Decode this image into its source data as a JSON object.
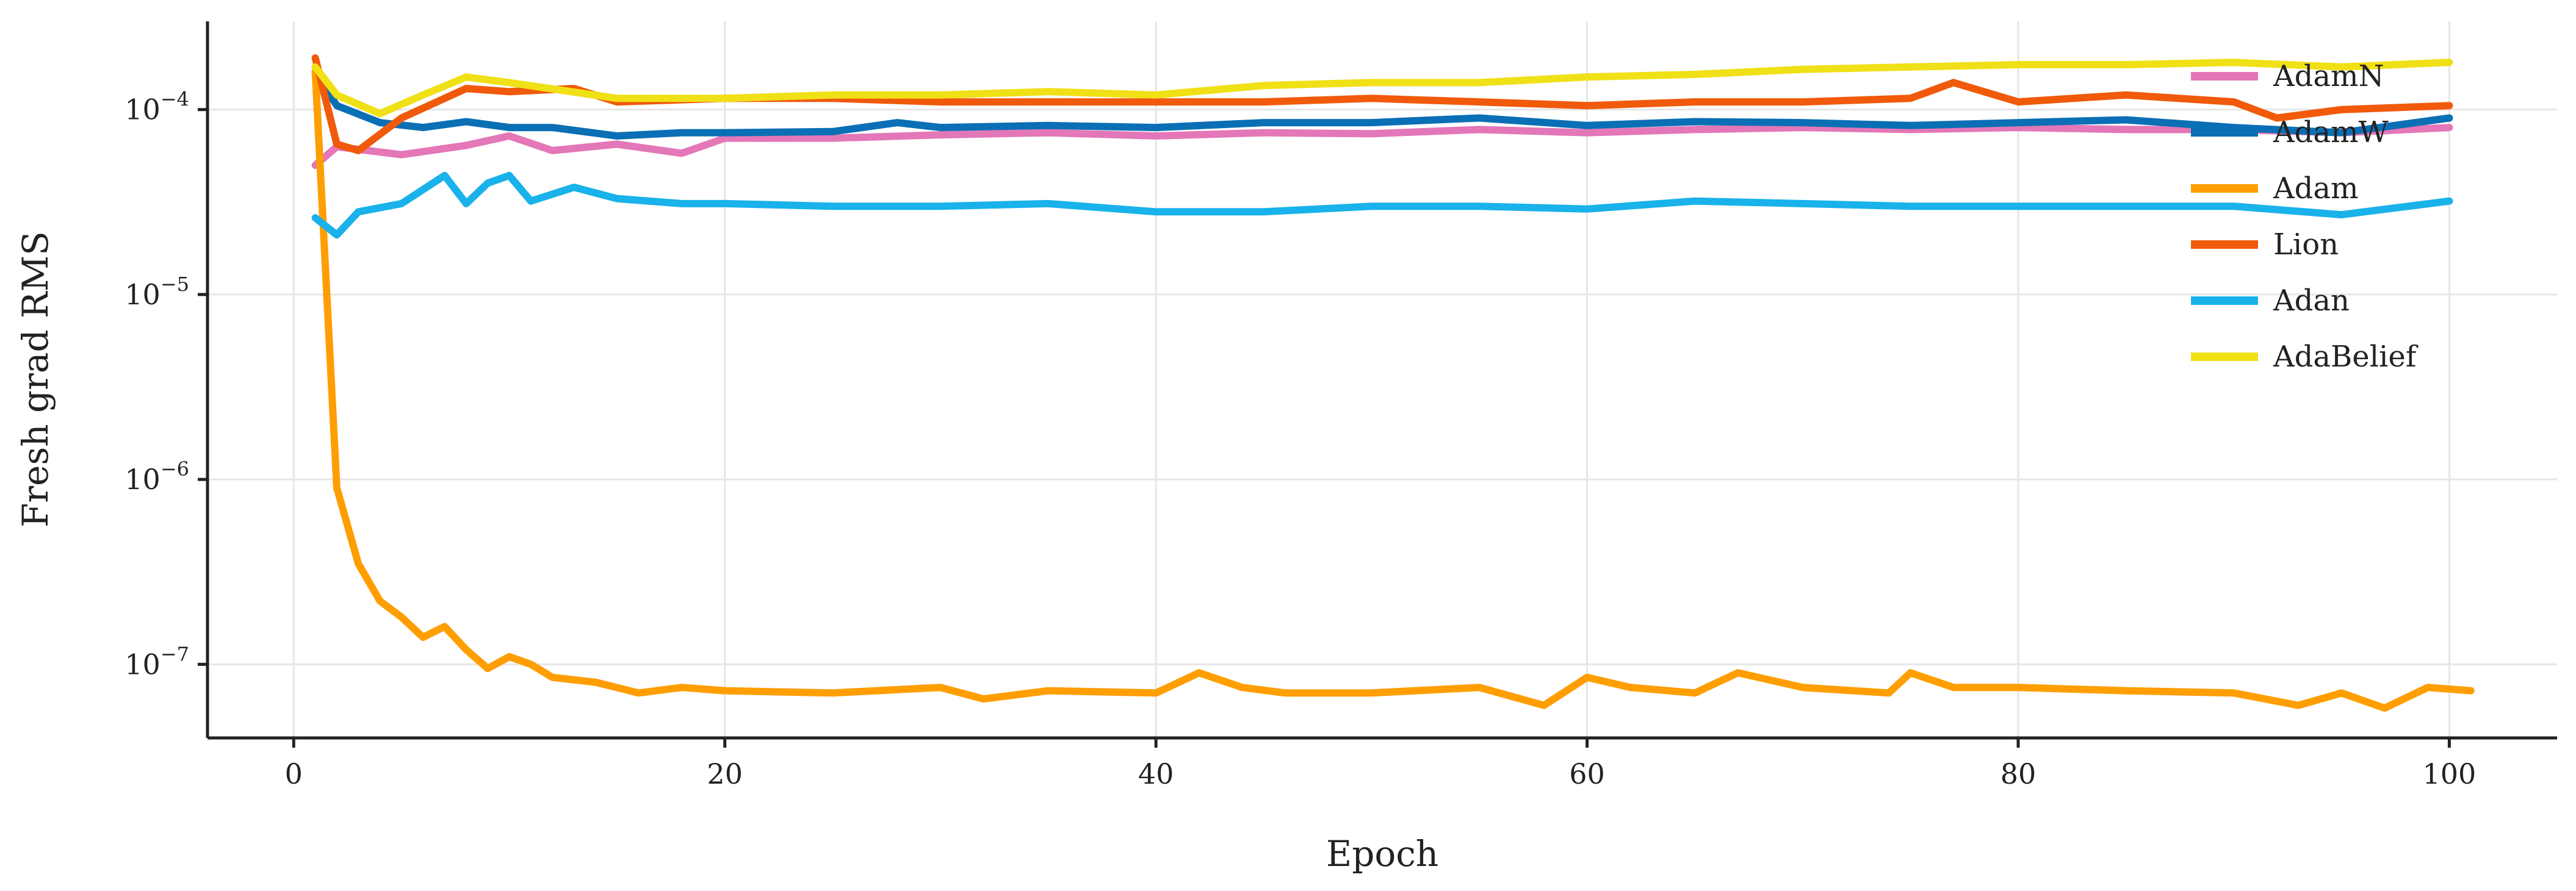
{
  "chart_data": {
    "type": "line",
    "title": "",
    "xlabel": "Epoch",
    "ylabel": "Fresh grad RMS",
    "xlim": [
      -4,
      105
    ],
    "ylim": [
      4e-08,
      0.0003
    ],
    "yscale": "log",
    "grid": true,
    "legend_position": "top-right",
    "x_ticks": [
      {
        "value": 0,
        "label": "0"
      },
      {
        "value": 20,
        "label": "20"
      },
      {
        "value": 40,
        "label": "40"
      },
      {
        "value": 60,
        "label": "60"
      },
      {
        "value": 80,
        "label": "80"
      },
      {
        "value": 100,
        "label": "100"
      }
    ],
    "y_ticks": [
      {
        "value": 1e-07,
        "base": "10",
        "exp": "−7"
      },
      {
        "value": 1e-06,
        "base": "10",
        "exp": "−6"
      },
      {
        "value": 1e-05,
        "base": "10",
        "exp": "−5"
      },
      {
        "value": 0.0001,
        "base": "10",
        "exp": "−4"
      }
    ],
    "series": [
      {
        "name": "AdamN",
        "color": "#e377b8",
        "points": [
          [
            1,
            5e-05
          ],
          [
            2,
            6.3e-05
          ],
          [
            5,
            5.7e-05
          ],
          [
            8,
            6.4e-05
          ],
          [
            10,
            7.2e-05
          ],
          [
            12,
            6e-05
          ],
          [
            15,
            6.5e-05
          ],
          [
            18,
            5.8e-05
          ],
          [
            20,
            7e-05
          ],
          [
            25,
            7e-05
          ],
          [
            30,
            7.3e-05
          ],
          [
            35,
            7.5e-05
          ],
          [
            40,
            7.2e-05
          ],
          [
            45,
            7.5e-05
          ],
          [
            50,
            7.4e-05
          ],
          [
            55,
            7.8e-05
          ],
          [
            60,
            7.5e-05
          ],
          [
            65,
            7.8e-05
          ],
          [
            70,
            8e-05
          ],
          [
            75,
            7.8e-05
          ],
          [
            80,
            8e-05
          ],
          [
            85,
            7.8e-05
          ],
          [
            90,
            7.8e-05
          ],
          [
            95,
            7.5e-05
          ],
          [
            100,
            8e-05
          ]
        ]
      },
      {
        "name": "AdamW",
        "color": "#0a6fb5",
        "points": [
          [
            1,
            0.00016
          ],
          [
            2,
            0.000105
          ],
          [
            4,
            8.5e-05
          ],
          [
            6,
            8e-05
          ],
          [
            8,
            8.6e-05
          ],
          [
            10,
            8e-05
          ],
          [
            12,
            8e-05
          ],
          [
            15,
            7.2e-05
          ],
          [
            18,
            7.5e-05
          ],
          [
            20,
            7.5e-05
          ],
          [
            25,
            7.6e-05
          ],
          [
            28,
            8.5e-05
          ],
          [
            30,
            8e-05
          ],
          [
            35,
            8.2e-05
          ],
          [
            40,
            8e-05
          ],
          [
            45,
            8.5e-05
          ],
          [
            50,
            8.5e-05
          ],
          [
            55,
            9e-05
          ],
          [
            60,
            8.2e-05
          ],
          [
            65,
            8.6e-05
          ],
          [
            70,
            8.5e-05
          ],
          [
            75,
            8.2e-05
          ],
          [
            80,
            8.5e-05
          ],
          [
            85,
            8.8e-05
          ],
          [
            90,
            8e-05
          ],
          [
            95,
            7.5e-05
          ],
          [
            100,
            9e-05
          ]
        ]
      },
      {
        "name": "Adam",
        "color": "#ff9e00",
        "points": [
          [
            1,
            0.00016
          ],
          [
            2,
            9e-07
          ],
          [
            3,
            3.5e-07
          ],
          [
            4,
            2.2e-07
          ],
          [
            5,
            1.8e-07
          ],
          [
            6,
            1.4e-07
          ],
          [
            7,
            1.6e-07
          ],
          [
            8,
            1.2e-07
          ],
          [
            9,
            9.5e-08
          ],
          [
            10,
            1.1e-07
          ],
          [
            11,
            1e-07
          ],
          [
            12,
            8.5e-08
          ],
          [
            14,
            8e-08
          ],
          [
            16,
            7e-08
          ],
          [
            18,
            7.5e-08
          ],
          [
            20,
            7.2e-08
          ],
          [
            25,
            7e-08
          ],
          [
            30,
            7.5e-08
          ],
          [
            32,
            6.5e-08
          ],
          [
            35,
            7.2e-08
          ],
          [
            40,
            7e-08
          ],
          [
            42,
            9e-08
          ],
          [
            44,
            7.5e-08
          ],
          [
            46,
            7e-08
          ],
          [
            50,
            7e-08
          ],
          [
            55,
            7.5e-08
          ],
          [
            58,
            6e-08
          ],
          [
            60,
            8.5e-08
          ],
          [
            62,
            7.5e-08
          ],
          [
            65,
            7e-08
          ],
          [
            67,
            9e-08
          ],
          [
            70,
            7.5e-08
          ],
          [
            74,
            7e-08
          ],
          [
            75,
            9e-08
          ],
          [
            77,
            7.5e-08
          ],
          [
            80,
            7.5e-08
          ],
          [
            85,
            7.2e-08
          ],
          [
            90,
            7e-08
          ],
          [
            93,
            6e-08
          ],
          [
            95,
            7e-08
          ],
          [
            97,
            5.8e-08
          ],
          [
            99,
            7.5e-08
          ],
          [
            101,
            7.2e-08
          ]
        ]
      },
      {
        "name": "Lion",
        "color": "#f05a0a",
        "points": [
          [
            1,
            0.00019
          ],
          [
            2,
            6.5e-05
          ],
          [
            3,
            6e-05
          ],
          [
            5,
            9e-05
          ],
          [
            8,
            0.00013
          ],
          [
            10,
            0.000125
          ],
          [
            13,
            0.00013
          ],
          [
            15,
            0.00011
          ],
          [
            20,
            0.000115
          ],
          [
            25,
            0.000115
          ],
          [
            30,
            0.00011
          ],
          [
            35,
            0.00011
          ],
          [
            40,
            0.00011
          ],
          [
            45,
            0.00011
          ],
          [
            50,
            0.000115
          ],
          [
            55,
            0.00011
          ],
          [
            60,
            0.000105
          ],
          [
            65,
            0.00011
          ],
          [
            70,
            0.00011
          ],
          [
            75,
            0.000115
          ],
          [
            77,
            0.00014
          ],
          [
            80,
            0.00011
          ],
          [
            85,
            0.00012
          ],
          [
            90,
            0.00011
          ],
          [
            92,
            9e-05
          ],
          [
            95,
            0.0001
          ],
          [
            100,
            0.000105
          ]
        ]
      },
      {
        "name": "Adan",
        "color": "#19b2ea",
        "points": [
          [
            1,
            2.6e-05
          ],
          [
            2,
            2.1e-05
          ],
          [
            3,
            2.8e-05
          ],
          [
            5,
            3.1e-05
          ],
          [
            7,
            4.4e-05
          ],
          [
            8,
            3.1e-05
          ],
          [
            9,
            4e-05
          ],
          [
            10,
            4.4e-05
          ],
          [
            11,
            3.2e-05
          ],
          [
            13,
            3.8e-05
          ],
          [
            15,
            3.3e-05
          ],
          [
            18,
            3.1e-05
          ],
          [
            20,
            3.1e-05
          ],
          [
            25,
            3e-05
          ],
          [
            30,
            3e-05
          ],
          [
            35,
            3.1e-05
          ],
          [
            40,
            2.8e-05
          ],
          [
            45,
            2.8e-05
          ],
          [
            50,
            3e-05
          ],
          [
            55,
            3e-05
          ],
          [
            60,
            2.9e-05
          ],
          [
            65,
            3.2e-05
          ],
          [
            70,
            3.1e-05
          ],
          [
            75,
            3e-05
          ],
          [
            80,
            3e-05
          ],
          [
            85,
            3e-05
          ],
          [
            90,
            3e-05
          ],
          [
            95,
            2.7e-05
          ],
          [
            100,
            3.2e-05
          ]
        ]
      },
      {
        "name": "AdaBelief",
        "color": "#f0e016",
        "points": [
          [
            1,
            0.00017
          ],
          [
            2,
            0.00012
          ],
          [
            4,
            9.5e-05
          ],
          [
            6,
            0.00012
          ],
          [
            8,
            0.00015
          ],
          [
            10,
            0.00014
          ],
          [
            15,
            0.000115
          ],
          [
            20,
            0.000115
          ],
          [
            25,
            0.00012
          ],
          [
            30,
            0.00012
          ],
          [
            35,
            0.000125
          ],
          [
            40,
            0.00012
          ],
          [
            45,
            0.000135
          ],
          [
            50,
            0.00014
          ],
          [
            55,
            0.00014
          ],
          [
            60,
            0.00015
          ],
          [
            65,
            0.000155
          ],
          [
            70,
            0.000165
          ],
          [
            75,
            0.00017
          ],
          [
            80,
            0.000175
          ],
          [
            85,
            0.000175
          ],
          [
            90,
            0.00018
          ],
          [
            95,
            0.00017
          ],
          [
            100,
            0.00018
          ]
        ]
      }
    ]
  }
}
